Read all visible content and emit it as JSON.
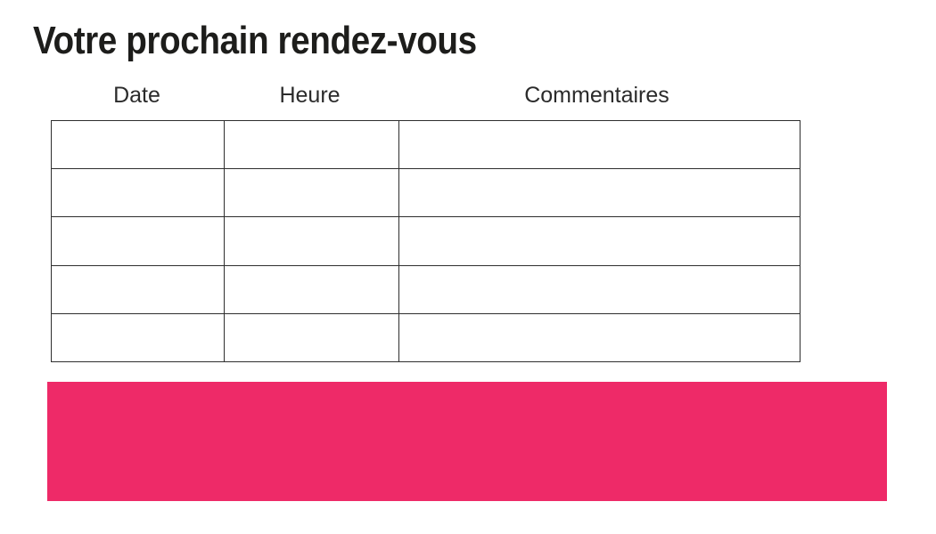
{
  "page": {
    "title": "Votre prochain rendez-vous"
  },
  "table": {
    "headers": [
      "Date",
      "Heure",
      "Commentaires"
    ],
    "rows": [
      [
        "",
        "",
        ""
      ],
      [
        "",
        "",
        ""
      ],
      [
        "",
        "",
        ""
      ],
      [
        "",
        "",
        ""
      ],
      [
        "",
        "",
        ""
      ]
    ],
    "border_color": "#2e2e2e"
  },
  "highlight_bar": {
    "color": "#ee2a68"
  },
  "colors": {
    "background": "#ffffff",
    "title_text": "#1d1d1b",
    "header_text": "#2b2b2b"
  }
}
